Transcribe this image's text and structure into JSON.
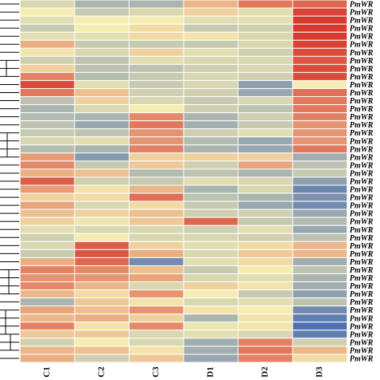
{
  "chart_data": {
    "type": "heatmap",
    "title": "",
    "columns": [
      "C1",
      "C2",
      "C3",
      "D1",
      "D2",
      "D3"
    ],
    "row_label": "PmWR",
    "color_scale": {
      "low": "#3b62b0",
      "mid": "#f4ecb0",
      "high": "#d63a2f"
    },
    "value_range": [
      -2,
      2
    ],
    "legend": "none",
    "values": [
      [
        -0.3,
        -0.8,
        -0.8,
        0.6,
        1.3,
        1.5
      ],
      [
        0.0,
        -0.5,
        -0.3,
        0.3,
        -0.2,
        1.9
      ],
      [
        -0.2,
        0.0,
        0.0,
        -0.2,
        -0.2,
        2.0
      ],
      [
        -0.5,
        0.0,
        0.2,
        -0.5,
        -0.4,
        2.0
      ],
      [
        -0.2,
        -0.2,
        0.2,
        0.1,
        -0.3,
        2.0
      ],
      [
        0.7,
        -0.5,
        -0.5,
        -0.5,
        -0.3,
        1.9
      ],
      [
        0.1,
        -0.3,
        0.3,
        -0.2,
        -0.4,
        1.8
      ],
      [
        -0.4,
        -0.6,
        -0.2,
        -0.3,
        -0.3,
        1.7
      ],
      [
        0.3,
        -0.6,
        -0.6,
        -0.4,
        -0.3,
        1.8
      ],
      [
        1.2,
        -0.7,
        -0.5,
        -0.3,
        -0.4,
        1.8
      ],
      [
        1.8,
        -0.2,
        -0.5,
        -0.3,
        -1.1,
        0.0
      ],
      [
        1.3,
        0.5,
        -0.4,
        -0.4,
        -1.0,
        1.4
      ],
      [
        -0.6,
        0.3,
        -0.3,
        -0.5,
        -0.3,
        1.3
      ],
      [
        -0.8,
        -0.3,
        0.0,
        -0.4,
        -0.6,
        1.3
      ],
      [
        -0.7,
        -0.8,
        1.1,
        -0.8,
        -0.4,
        1.2
      ],
      [
        -0.6,
        -1.0,
        1.3,
        -0.9,
        -0.5,
        1.0
      ],
      [
        -0.5,
        -0.6,
        1.0,
        -0.4,
        -0.2,
        1.0
      ],
      [
        -0.3,
        -0.2,
        1.0,
        -0.7,
        -1.0,
        1.0
      ],
      [
        -0.7,
        -0.8,
        1.2,
        -0.8,
        -1.0,
        1.3
      ],
      [
        0.9,
        -1.2,
        0.3,
        0.3,
        0.3,
        -0.9
      ],
      [
        1.1,
        -0.5,
        0.4,
        -0.4,
        0.8,
        -0.6
      ],
      [
        0.7,
        0.5,
        -0.7,
        -0.6,
        -0.8,
        -0.5
      ],
      [
        1.6,
        -0.4,
        -0.5,
        -0.2,
        -0.3,
        -1.1
      ],
      [
        0.9,
        0.1,
        0.6,
        -0.8,
        -0.3,
        -1.5
      ],
      [
        0.3,
        0.2,
        1.4,
        -0.6,
        -0.8,
        -1.3
      ],
      [
        0.8,
        -0.3,
        0.2,
        -0.5,
        -1.0,
        -1.4
      ],
      [
        0.5,
        0.3,
        0.5,
        -0.4,
        -0.4,
        -1.0
      ],
      [
        0.3,
        -0.1,
        0.4,
        1.5,
        -0.5,
        -0.7
      ],
      [
        -0.2,
        -0.3,
        -0.3,
        -0.4,
        -0.2,
        -1.0
      ],
      [
        -0.4,
        0.0,
        -0.3,
        -0.3,
        -0.4,
        -0.6
      ],
      [
        -0.3,
        1.6,
        0.3,
        -0.2,
        0.2,
        0.6
      ],
      [
        -0.5,
        1.7,
        0.7,
        -0.3,
        0.4,
        0.6
      ],
      [
        0.7,
        1.5,
        -1.4,
        -0.2,
        0.2,
        -0.9
      ],
      [
        1.2,
        1.1,
        0.5,
        -0.5,
        0.0,
        -0.6
      ],
      [
        1.0,
        1.0,
        0.8,
        -0.3,
        -0.2,
        -0.8
      ],
      [
        1.1,
        0.6,
        -0.3,
        0.3,
        0.1,
        -0.9
      ],
      [
        0.6,
        0.2,
        1.0,
        0.0,
        -0.5,
        -1.1
      ],
      [
        -0.8,
        0.4,
        0.1,
        -0.3,
        -0.2,
        -0.6
      ],
      [
        0.8,
        0.5,
        1.0,
        0.1,
        0.0,
        -1.4
      ],
      [
        0.6,
        0.7,
        0.3,
        -0.8,
        0.1,
        -1.6
      ],
      [
        1.2,
        0.1,
        1.1,
        -0.1,
        0.1,
        -1.8
      ],
      [
        0.4,
        0.4,
        -0.3,
        -0.2,
        -0.3,
        -1.6
      ],
      [
        -0.4,
        0.0,
        -0.3,
        -0.9,
        1.2,
        -0.4
      ],
      [
        0.6,
        0.5,
        0.1,
        -0.9,
        1.3,
        0.6
      ],
      [
        0.7,
        -0.4,
        0.4,
        -1.0,
        1.2,
        0.2
      ]
    ]
  }
}
